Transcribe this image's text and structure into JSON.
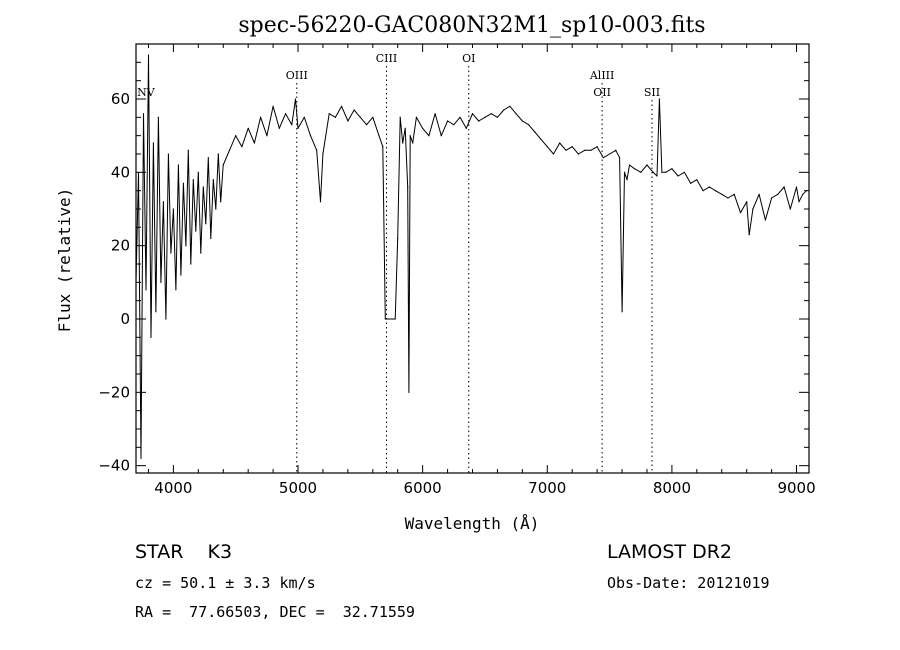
{
  "chart_data": {
    "type": "line",
    "title": "spec-56220-GAC080N32M1_sp10-003.fits",
    "xlabel": "Wavelength (Å)",
    "ylabel": "Flux (relative)",
    "xlim": [
      3700,
      9100
    ],
    "ylim": [
      -42,
      75
    ],
    "xticks": [
      4000,
      5000,
      6000,
      7000,
      8000,
      9000
    ],
    "yticks": [
      -40,
      -20,
      0,
      20,
      40,
      60
    ],
    "grid": false,
    "series": [
      {
        "x": [
          3700,
          3720,
          3740,
          3760,
          3780,
          3800,
          3820,
          3840,
          3860,
          3880,
          3900,
          3920,
          3940,
          3960,
          3980,
          4000,
          4020,
          4040,
          4060,
          4080,
          4100,
          4120,
          4140,
          4160,
          4180,
          4200,
          4220,
          4240,
          4260,
          4280,
          4300,
          4320,
          4340,
          4360,
          4380,
          4400,
          4450,
          4500,
          4550,
          4600,
          4650,
          4700,
          4750,
          4800,
          4850,
          4900,
          4950,
          4980,
          5000,
          5050,
          5100,
          5150,
          5180,
          5200,
          5250,
          5300,
          5350,
          5400,
          5450,
          5500,
          5550,
          5600,
          5650,
          5680,
          5700,
          5720,
          5760,
          5780,
          5800,
          5820,
          5840,
          5860,
          5880,
          5890,
          5900,
          5920,
          5950,
          6000,
          6050,
          6100,
          6150,
          6200,
          6250,
          6300,
          6350,
          6400,
          6450,
          6500,
          6550,
          6600,
          6650,
          6700,
          6750,
          6800,
          6850,
          6900,
          6950,
          7000,
          7050,
          7100,
          7150,
          7200,
          7250,
          7300,
          7350,
          7400,
          7450,
          7500,
          7550,
          7580,
          7600,
          7620,
          7640,
          7660,
          7700,
          7750,
          7800,
          7850,
          7880,
          7900,
          7920,
          7950,
          8000,
          8050,
          8100,
          8150,
          8200,
          8250,
          8300,
          8350,
          8400,
          8450,
          8500,
          8550,
          8600,
          8620,
          8650,
          8700,
          8750,
          8800,
          8850,
          8900,
          8950,
          9000,
          9020,
          9050,
          9080
        ],
        "y": [
          10,
          40,
          -38,
          56,
          8,
          72,
          -5,
          48,
          2,
          55,
          10,
          32,
          0,
          45,
          18,
          30,
          8,
          42,
          12,
          37,
          20,
          46,
          15,
          38,
          24,
          40,
          18,
          36,
          26,
          44,
          22,
          38,
          30,
          45,
          32,
          42,
          46,
          50,
          47,
          52,
          48,
          55,
          50,
          58,
          52,
          56,
          53,
          60,
          52,
          55,
          50,
          46,
          32,
          45,
          56,
          55,
          58,
          54,
          57,
          55,
          53,
          55,
          50,
          47,
          0,
          0,
          0,
          0,
          22,
          55,
          48,
          52,
          36,
          -20,
          50,
          48,
          55,
          52,
          50,
          56,
          50,
          54,
          53,
          55,
          52,
          56,
          54,
          55,
          56,
          55,
          57,
          58,
          56,
          54,
          53,
          51,
          49,
          47,
          45,
          48,
          46,
          47,
          45,
          46,
          46,
          47,
          44,
          45,
          46,
          44,
          2,
          40,
          38,
          42,
          41,
          40,
          42,
          40,
          39,
          60,
          40,
          40,
          41,
          39,
          40,
          37,
          38,
          35,
          36,
          35,
          34,
          33,
          34,
          29,
          32,
          23,
          30,
          34,
          27,
          33,
          34,
          36,
          30,
          36,
          32,
          34,
          35
        ]
      }
    ],
    "lines": [
      {
        "label": "NV",
        "wavelength": 3780
      },
      {
        "label": "OIII",
        "wavelength": 4990
      },
      {
        "label": "CIII",
        "wavelength": 5710
      },
      {
        "label": "OI",
        "wavelength": 6370
      },
      {
        "label": "AlIII",
        "wavelength": 7440
      },
      {
        "label": "OII",
        "wavelength": 7440
      },
      {
        "label": "SII",
        "wavelength": 7840
      }
    ]
  },
  "info": {
    "object": "STAR    K3",
    "cz": "cz = 50.1 ± 3.3 km/s",
    "coords": "RA =  77.66503, DEC =  32.71559",
    "survey": "LAMOST DR2",
    "obsdate": "Obs-Date: 20121019"
  }
}
